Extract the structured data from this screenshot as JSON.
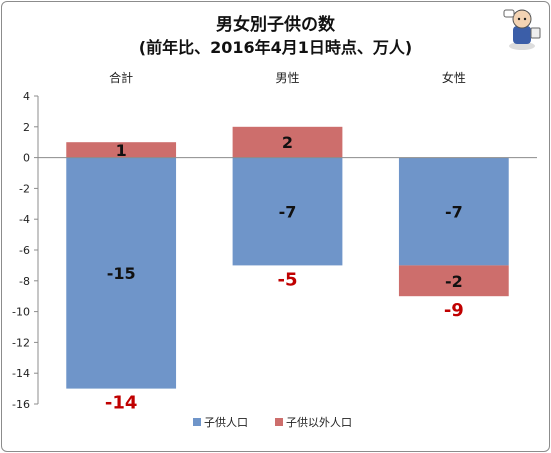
{
  "chart_data": {
    "type": "bar",
    "stacked": true,
    "title": "男女別子供の数",
    "subtitle": "(前年比、2016年4月1日時点、万人)",
    "categories": [
      "合計",
      "男性",
      "女性"
    ],
    "series": [
      {
        "name": "子供人口",
        "values": [
          -15,
          -7,
          -7
        ],
        "labels": [
          "-15",
          "-7",
          "-7"
        ],
        "color": "#6f95c9"
      },
      {
        "name": "子供以外人口",
        "values": [
          1,
          2,
          -2
        ],
        "labels": [
          "1",
          "2",
          "-2"
        ],
        "color": "#cd6e6c"
      }
    ],
    "totals": [
      -14,
      -5,
      -9
    ],
    "total_labels": [
      "-14",
      "-5",
      "-9"
    ],
    "total_label_color": "#c00000",
    "ylim": [
      -16,
      4
    ],
    "y_ticks": [
      "4",
      "2",
      "0",
      "-2",
      "-4",
      "-6",
      "-8",
      "-10",
      "-12",
      "-14",
      "-16"
    ],
    "category_axis_position": "top",
    "legend_position": "bottom",
    "grid": false
  }
}
